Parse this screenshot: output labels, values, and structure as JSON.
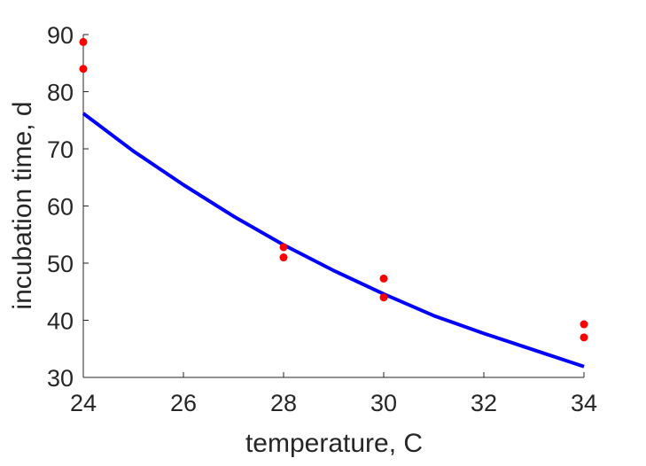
{
  "chart_data": {
    "type": "scatter",
    "title": "",
    "xlabel": "temperature, C",
    "ylabel": "incubation time, d",
    "xlim": [
      24,
      34
    ],
    "ylim": [
      30,
      90
    ],
    "xticks": [
      24,
      26,
      28,
      30,
      32,
      34
    ],
    "yticks": [
      30,
      40,
      50,
      60,
      70,
      80,
      90
    ],
    "xtick_labels": [
      "24",
      "26",
      "28",
      "30",
      "32",
      "34"
    ],
    "ytick_labels": [
      "30",
      "40",
      "50",
      "60",
      "70",
      "80",
      "90"
    ],
    "grid": false,
    "legend": "none",
    "series": [
      {
        "kind": "scatter",
        "color": "#ff0000",
        "points": [
          {
            "x": 24,
            "y": 88.7
          },
          {
            "x": 24,
            "y": 84.0
          },
          {
            "x": 28,
            "y": 52.8
          },
          {
            "x": 28,
            "y": 51.0
          },
          {
            "x": 30,
            "y": 47.3
          },
          {
            "x": 30,
            "y": 44.0
          },
          {
            "x": 34,
            "y": 39.3
          },
          {
            "x": 34,
            "y": 37.0
          }
        ]
      },
      {
        "kind": "line",
        "color": "#0000ff",
        "x": [
          24,
          25,
          26,
          27,
          28,
          29,
          30,
          31,
          32,
          33,
          34
        ],
        "y": [
          76.2,
          69.6,
          63.7,
          58.2,
          53.2,
          48.7,
          44.6,
          40.8,
          37.7,
          34.8,
          31.9
        ]
      }
    ]
  }
}
